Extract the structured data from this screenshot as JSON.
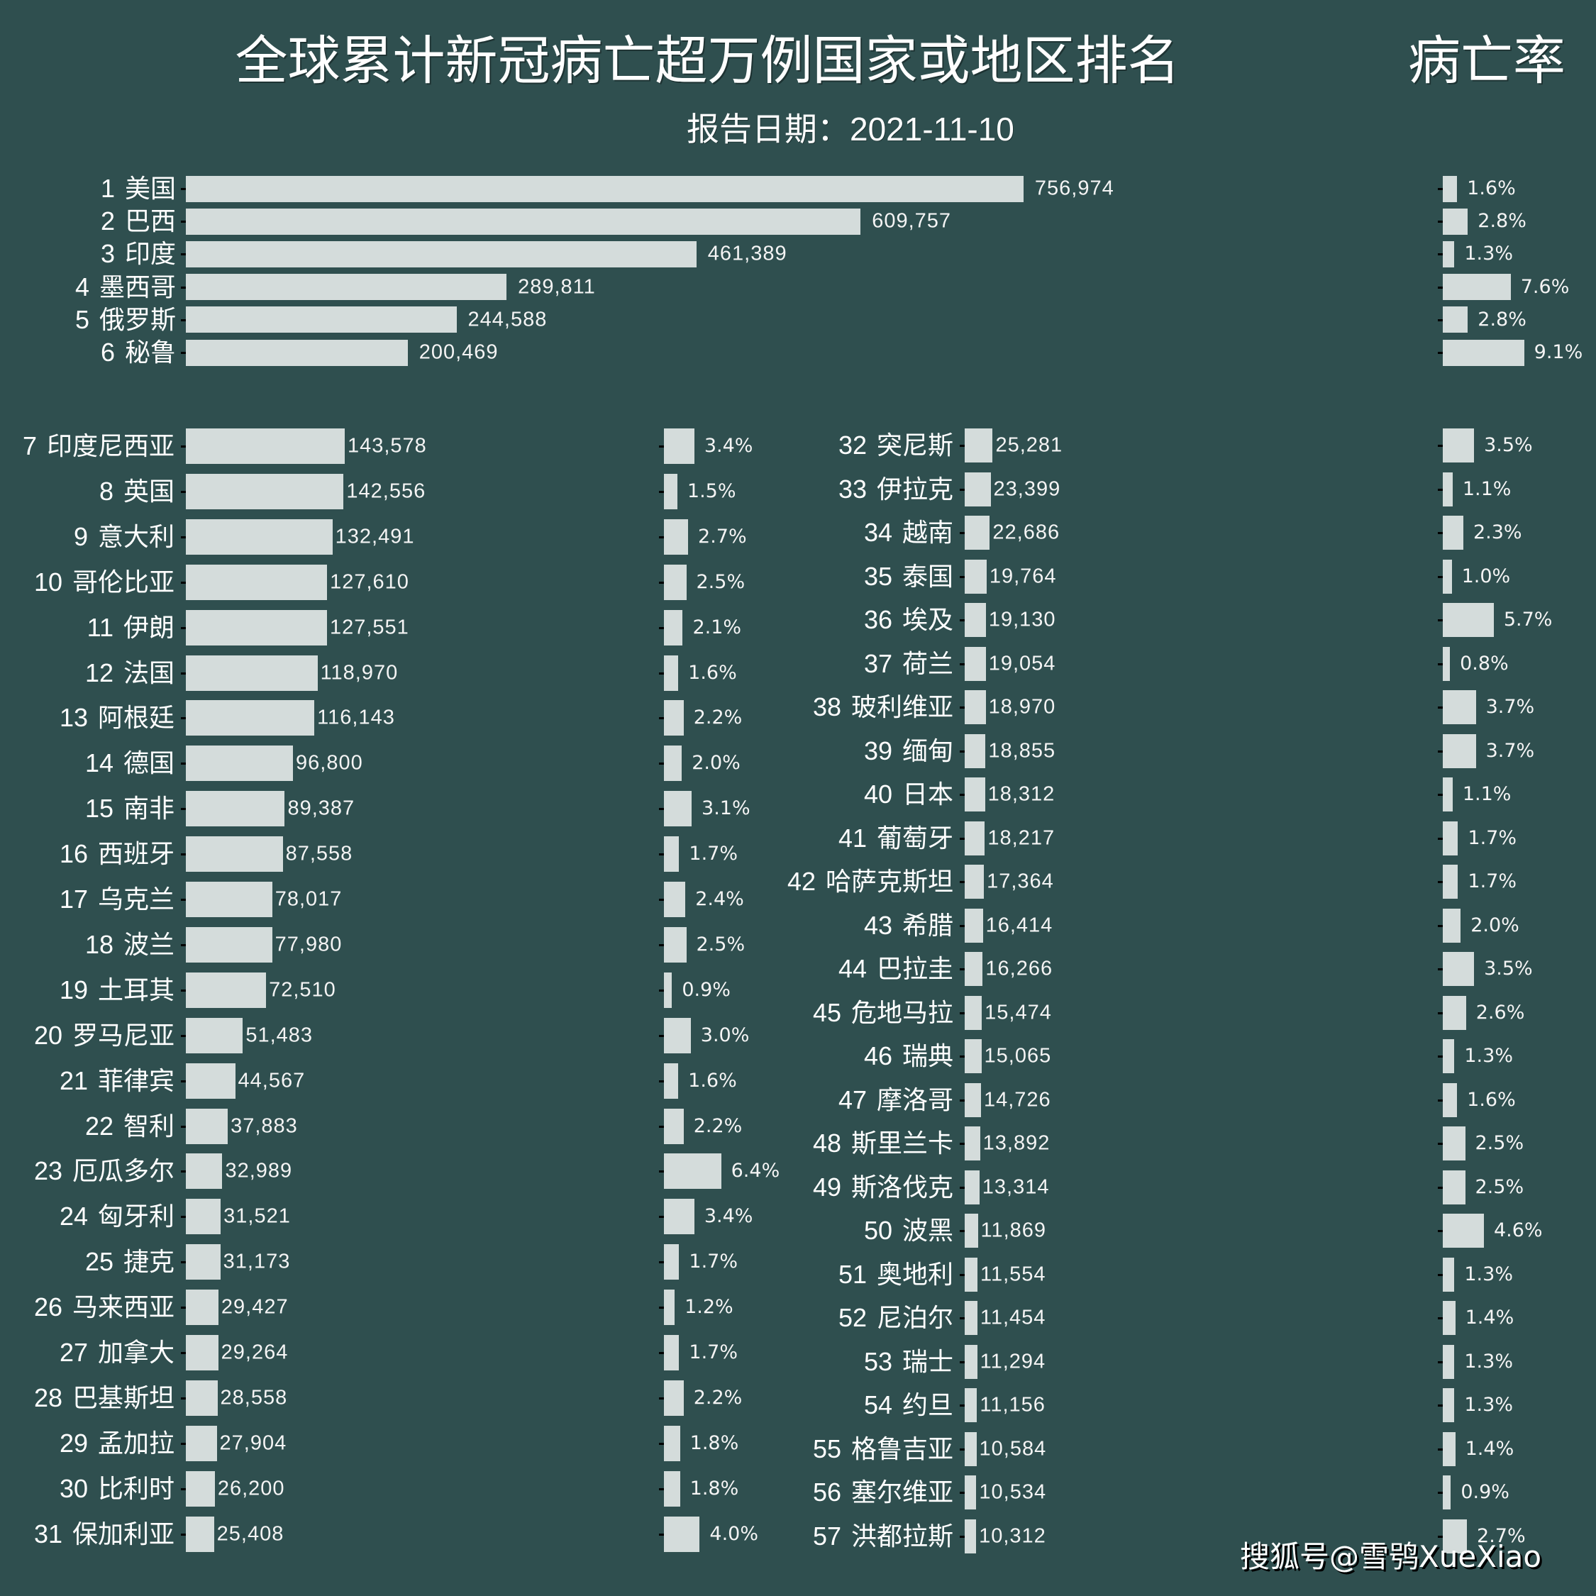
{
  "title": "全球累计新冠病亡超万例国家或地区排名",
  "rate_header": "病亡率",
  "subtitle": "报告日期：2021-11-10",
  "watermark": "搜狐号@雪鸮XueXiao",
  "colors": {
    "background": "#2f4f4f",
    "bar": "#d4dcdb",
    "text": "#ffffff",
    "tick": "#000000"
  },
  "chart_data": {
    "type": "bar",
    "orientation": "horizontal",
    "title": "全球累计新冠病亡超万例国家或地区排名",
    "subtitle": "报告日期：2021-11-10",
    "rate_title": "病亡率",
    "xlabel": "",
    "ylabel": "",
    "grid": false,
    "legend": "none",
    "categories": [
      "美国",
      "巴西",
      "印度",
      "墨西哥",
      "俄罗斯",
      "秘鲁",
      "印度尼西亚",
      "英国",
      "意大利",
      "哥伦比亚",
      "伊朗",
      "法国",
      "阿根廷",
      "德国",
      "南非",
      "西班牙",
      "乌克兰",
      "波兰",
      "土耳其",
      "罗马尼亚",
      "菲律宾",
      "智利",
      "厄瓜多尔",
      "匈牙利",
      "捷克",
      "马来西亚",
      "加拿大",
      "巴基斯坦",
      "孟加拉",
      "比利时",
      "保加利亚",
      "突尼斯",
      "伊拉克",
      "越南",
      "泰国",
      "埃及",
      "荷兰",
      "玻利维亚",
      "缅甸",
      "日本",
      "葡萄牙",
      "哈萨克斯坦",
      "希腊",
      "巴拉圭",
      "危地马拉",
      "瑞典",
      "摩洛哥",
      "斯里兰卡",
      "斯洛伐克",
      "波黑",
      "奥地利",
      "尼泊尔",
      "瑞士",
      "约旦",
      "格鲁吉亚",
      "塞尔维亚",
      "洪都拉斯"
    ],
    "series": [
      {
        "name": "累计病亡",
        "values": [
          756974,
          609757,
          461389,
          289811,
          244588,
          200469,
          143578,
          142556,
          132491,
          127610,
          127551,
          118970,
          116143,
          96800,
          89387,
          87558,
          78017,
          77980,
          72510,
          51483,
          44567,
          37883,
          32989,
          31521,
          31173,
          29427,
          29264,
          28558,
          27904,
          26200,
          25408,
          25281,
          23399,
          22686,
          19764,
          19130,
          19054,
          18970,
          18855,
          18312,
          18217,
          17364,
          16414,
          16266,
          15474,
          15065,
          14726,
          13892,
          13314,
          11869,
          11554,
          11454,
          11294,
          11156,
          10584,
          10534,
          10312
        ]
      },
      {
        "name": "病亡率",
        "unit": "%",
        "values": [
          1.6,
          2.8,
          1.3,
          7.6,
          2.8,
          9.1,
          3.4,
          1.5,
          2.7,
          2.5,
          2.1,
          1.6,
          2.2,
          2.0,
          3.1,
          1.7,
          2.4,
          2.5,
          0.9,
          3.0,
          1.6,
          2.2,
          6.4,
          3.4,
          1.7,
          1.2,
          1.7,
          2.2,
          1.8,
          1.8,
          4.0,
          3.5,
          1.1,
          2.3,
          1.0,
          5.7,
          0.8,
          3.7,
          3.7,
          1.1,
          1.7,
          1.7,
          2.0,
          3.5,
          2.6,
          1.3,
          1.6,
          2.5,
          2.5,
          4.6,
          1.3,
          1.4,
          1.3,
          1.3,
          1.4,
          0.9,
          2.7
        ]
      }
    ],
    "rows": [
      {
        "rank": "1",
        "country": "美国",
        "deaths": 756974,
        "deaths_label": "756,974",
        "rate": 1.6,
        "rate_label": "1.6%"
      },
      {
        "rank": "2",
        "country": "巴西",
        "deaths": 609757,
        "deaths_label": "609,757",
        "rate": 2.8,
        "rate_label": "2.8%"
      },
      {
        "rank": "3",
        "country": "印度",
        "deaths": 461389,
        "deaths_label": "461,389",
        "rate": 1.3,
        "rate_label": "1.3%"
      },
      {
        "rank": "4",
        "country": "墨西哥",
        "deaths": 289811,
        "deaths_label": "289,811",
        "rate": 7.6,
        "rate_label": "7.6%"
      },
      {
        "rank": "5",
        "country": "俄罗斯",
        "deaths": 244588,
        "deaths_label": "244,588",
        "rate": 2.8,
        "rate_label": "2.8%"
      },
      {
        "rank": "6",
        "country": "秘鲁",
        "deaths": 200469,
        "deaths_label": "200,469",
        "rate": 9.1,
        "rate_label": "9.1%"
      },
      {
        "rank": "7",
        "country": "印度尼西亚",
        "deaths": 143578,
        "deaths_label": "143,578",
        "rate": 3.4,
        "rate_label": "3.4%"
      },
      {
        "rank": "8",
        "country": "英国",
        "deaths": 142556,
        "deaths_label": "142,556",
        "rate": 1.5,
        "rate_label": "1.5%"
      },
      {
        "rank": "9",
        "country": "意大利",
        "deaths": 132491,
        "deaths_label": "132,491",
        "rate": 2.7,
        "rate_label": "2.7%"
      },
      {
        "rank": "10",
        "country": "哥伦比亚",
        "deaths": 127610,
        "deaths_label": "127,610",
        "rate": 2.5,
        "rate_label": "2.5%"
      },
      {
        "rank": "11",
        "country": "伊朗",
        "deaths": 127551,
        "deaths_label": "127,551",
        "rate": 2.1,
        "rate_label": "2.1%"
      },
      {
        "rank": "12",
        "country": "法国",
        "deaths": 118970,
        "deaths_label": "118,970",
        "rate": 1.6,
        "rate_label": "1.6%"
      },
      {
        "rank": "13",
        "country": "阿根廷",
        "deaths": 116143,
        "deaths_label": "116,143",
        "rate": 2.2,
        "rate_label": "2.2%"
      },
      {
        "rank": "14",
        "country": "德国",
        "deaths": 96800,
        "deaths_label": "96,800",
        "rate": 2.0,
        "rate_label": "2.0%"
      },
      {
        "rank": "15",
        "country": "南非",
        "deaths": 89387,
        "deaths_label": "89,387",
        "rate": 3.1,
        "rate_label": "3.1%"
      },
      {
        "rank": "16",
        "country": "西班牙",
        "deaths": 87558,
        "deaths_label": "87,558",
        "rate": 1.7,
        "rate_label": "1.7%"
      },
      {
        "rank": "17",
        "country": "乌克兰",
        "deaths": 78017,
        "deaths_label": "78,017",
        "rate": 2.4,
        "rate_label": "2.4%"
      },
      {
        "rank": "18",
        "country": "波兰",
        "deaths": 77980,
        "deaths_label": "77,980",
        "rate": 2.5,
        "rate_label": "2.5%"
      },
      {
        "rank": "19",
        "country": "土耳其",
        "deaths": 72510,
        "deaths_label": "72,510",
        "rate": 0.9,
        "rate_label": "0.9%"
      },
      {
        "rank": "20",
        "country": "罗马尼亚",
        "deaths": 51483,
        "deaths_label": "51,483",
        "rate": 3.0,
        "rate_label": "3.0%"
      },
      {
        "rank": "21",
        "country": "菲律宾",
        "deaths": 44567,
        "deaths_label": "44,567",
        "rate": 1.6,
        "rate_label": "1.6%"
      },
      {
        "rank": "22",
        "country": "智利",
        "deaths": 37883,
        "deaths_label": "37,883",
        "rate": 2.2,
        "rate_label": "2.2%"
      },
      {
        "rank": "23",
        "country": "厄瓜多尔",
        "deaths": 32989,
        "deaths_label": "32,989",
        "rate": 6.4,
        "rate_label": "6.4%"
      },
      {
        "rank": "24",
        "country": "匈牙利",
        "deaths": 31521,
        "deaths_label": "31,521",
        "rate": 3.4,
        "rate_label": "3.4%"
      },
      {
        "rank": "25",
        "country": "捷克",
        "deaths": 31173,
        "deaths_label": "31,173",
        "rate": 1.7,
        "rate_label": "1.7%"
      },
      {
        "rank": "26",
        "country": "马来西亚",
        "deaths": 29427,
        "deaths_label": "29,427",
        "rate": 1.2,
        "rate_label": "1.2%"
      },
      {
        "rank": "27",
        "country": "加拿大",
        "deaths": 29264,
        "deaths_label": "29,264",
        "rate": 1.7,
        "rate_label": "1.7%"
      },
      {
        "rank": "28",
        "country": "巴基斯坦",
        "deaths": 28558,
        "deaths_label": "28,558",
        "rate": 2.2,
        "rate_label": "2.2%"
      },
      {
        "rank": "29",
        "country": "孟加拉",
        "deaths": 27904,
        "deaths_label": "27,904",
        "rate": 1.8,
        "rate_label": "1.8%"
      },
      {
        "rank": "30",
        "country": "比利时",
        "deaths": 26200,
        "deaths_label": "26,200",
        "rate": 1.8,
        "rate_label": "1.8%"
      },
      {
        "rank": "31",
        "country": "保加利亚",
        "deaths": 25408,
        "deaths_label": "25,408",
        "rate": 4.0,
        "rate_label": "4.0%"
      },
      {
        "rank": "32",
        "country": "突尼斯",
        "deaths": 25281,
        "deaths_label": "25,281",
        "rate": 3.5,
        "rate_label": "3.5%"
      },
      {
        "rank": "33",
        "country": "伊拉克",
        "deaths": 23399,
        "deaths_label": "23,399",
        "rate": 1.1,
        "rate_label": "1.1%"
      },
      {
        "rank": "34",
        "country": "越南",
        "deaths": 22686,
        "deaths_label": "22,686",
        "rate": 2.3,
        "rate_label": "2.3%"
      },
      {
        "rank": "35",
        "country": "泰国",
        "deaths": 19764,
        "deaths_label": "19,764",
        "rate": 1.0,
        "rate_label": "1.0%"
      },
      {
        "rank": "36",
        "country": "埃及",
        "deaths": 19130,
        "deaths_label": "19,130",
        "rate": 5.7,
        "rate_label": "5.7%"
      },
      {
        "rank": "37",
        "country": "荷兰",
        "deaths": 19054,
        "deaths_label": "19,054",
        "rate": 0.8,
        "rate_label": "0.8%"
      },
      {
        "rank": "38",
        "country": "玻利维亚",
        "deaths": 18970,
        "deaths_label": "18,970",
        "rate": 3.7,
        "rate_label": "3.7%"
      },
      {
        "rank": "39",
        "country": "缅甸",
        "deaths": 18855,
        "deaths_label": "18,855",
        "rate": 3.7,
        "rate_label": "3.7%"
      },
      {
        "rank": "40",
        "country": "日本",
        "deaths": 18312,
        "deaths_label": "18,312",
        "rate": 1.1,
        "rate_label": "1.1%"
      },
      {
        "rank": "41",
        "country": "葡萄牙",
        "deaths": 18217,
        "deaths_label": "18,217",
        "rate": 1.7,
        "rate_label": "1.7%"
      },
      {
        "rank": "42",
        "country": "哈萨克斯坦",
        "deaths": 17364,
        "deaths_label": "17,364",
        "rate": 1.7,
        "rate_label": "1.7%"
      },
      {
        "rank": "43",
        "country": "希腊",
        "deaths": 16414,
        "deaths_label": "16,414",
        "rate": 2.0,
        "rate_label": "2.0%"
      },
      {
        "rank": "44",
        "country": "巴拉圭",
        "deaths": 16266,
        "deaths_label": "16,266",
        "rate": 3.5,
        "rate_label": "3.5%"
      },
      {
        "rank": "45",
        "country": "危地马拉",
        "deaths": 15474,
        "deaths_label": "15,474",
        "rate": 2.6,
        "rate_label": "2.6%"
      },
      {
        "rank": "46",
        "country": "瑞典",
        "deaths": 15065,
        "deaths_label": "15,065",
        "rate": 1.3,
        "rate_label": "1.3%"
      },
      {
        "rank": "47",
        "country": "摩洛哥",
        "deaths": 14726,
        "deaths_label": "14,726",
        "rate": 1.6,
        "rate_label": "1.6%"
      },
      {
        "rank": "48",
        "country": "斯里兰卡",
        "deaths": 13892,
        "deaths_label": "13,892",
        "rate": 2.5,
        "rate_label": "2.5%"
      },
      {
        "rank": "49",
        "country": "斯洛伐克",
        "deaths": 13314,
        "deaths_label": "13,314",
        "rate": 2.5,
        "rate_label": "2.5%"
      },
      {
        "rank": "50",
        "country": "波黑",
        "deaths": 11869,
        "deaths_label": "11,869",
        "rate": 4.6,
        "rate_label": "4.6%"
      },
      {
        "rank": "51",
        "country": "奥地利",
        "deaths": 11554,
        "deaths_label": "11,554",
        "rate": 1.3,
        "rate_label": "1.3%"
      },
      {
        "rank": "52",
        "country": "尼泊尔",
        "deaths": 11454,
        "deaths_label": "11,454",
        "rate": 1.4,
        "rate_label": "1.4%"
      },
      {
        "rank": "53",
        "country": "瑞士",
        "deaths": 11294,
        "deaths_label": "11,294",
        "rate": 1.3,
        "rate_label": "1.3%"
      },
      {
        "rank": "54",
        "country": "约旦",
        "deaths": 11156,
        "deaths_label": "11,156",
        "rate": 1.3,
        "rate_label": "1.3%"
      },
      {
        "rank": "55",
        "country": "格鲁吉亚",
        "deaths": 10584,
        "deaths_label": "10,584",
        "rate": 1.4,
        "rate_label": "1.4%"
      },
      {
        "rank": "56",
        "country": "塞尔维亚",
        "deaths": 10534,
        "deaths_label": "10,534",
        "rate": 0.9,
        "rate_label": "0.9%"
      },
      {
        "rank": "57",
        "country": "洪都拉斯",
        "deaths": 10312,
        "deaths_label": "10,312",
        "rate": 2.7,
        "rate_label": "2.7%"
      }
    ]
  }
}
